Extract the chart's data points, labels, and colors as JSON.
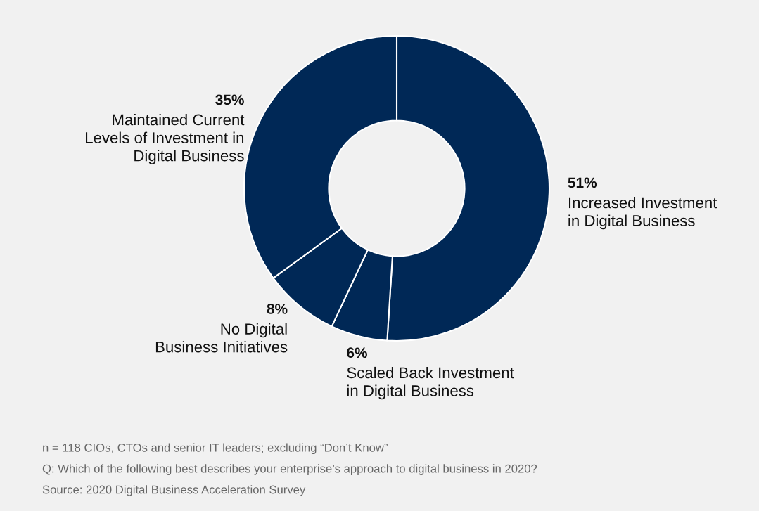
{
  "chart_data": {
    "type": "donut",
    "categories": [
      "Increased Investment\nin Digital Business",
      "Scaled Back Investment\nin Digital Business",
      "No Digital\nBusiness Initiatives",
      "Maintained Current\nLevels of Investment in\nDigital Business"
    ],
    "values": [
      51,
      6,
      8,
      35
    ],
    "colors": [
      "#002856",
      "#002856",
      "#002856",
      "#002856"
    ],
    "value_labels": [
      "51%",
      "6%",
      "8%",
      "35%"
    ],
    "legend": false,
    "annotations": [
      "n = 118 CIOs, CTOs and senior IT leaders; excluding “Don’t Know”",
      "Q: Which of the following best describes your enterprise’s approach to digital business in 2020?",
      "Source: 2020 Digital Business Acceleration Survey"
    ]
  }
}
